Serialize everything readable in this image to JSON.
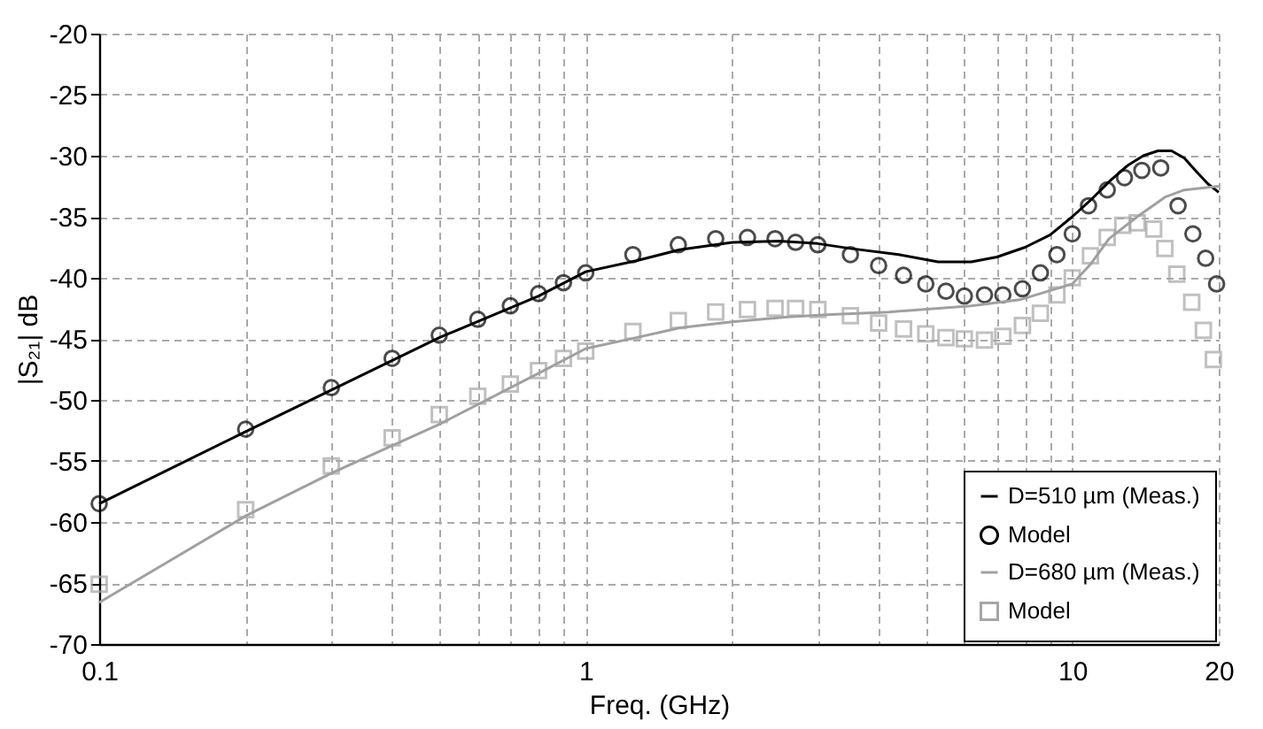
{
  "chart_data": {
    "type": "line",
    "xlabel": "Freq. (GHz)",
    "ylabel": "|S₂₁| dB",
    "log": "x",
    "grid": true,
    "legend": "bottom right",
    "xlim": [
      0.1,
      20
    ],
    "ylim": [
      -70,
      -20
    ],
    "xticks": [
      0.1,
      {
        "value": 0.2,
        "label": null
      },
      {
        "value": 0.3,
        "label": null
      },
      {
        "value": 0.4,
        "label": null
      },
      {
        "value": 0.5,
        "label": null
      },
      {
        "value": 0.6,
        "label": null
      },
      {
        "value": 0.7,
        "label": null
      },
      {
        "value": 0.8,
        "label": null
      },
      {
        "value": 0.9,
        "label": null
      },
      1,
      {
        "value": 2,
        "label": null
      },
      {
        "value": 3,
        "label": null
      },
      {
        "value": 4,
        "label": null
      },
      {
        "value": 5,
        "label": null
      },
      {
        "value": 6,
        "label": null
      },
      {
        "value": 7,
        "label": null
      },
      {
        "value": 8,
        "label": null
      },
      {
        "value": 9,
        "label": null
      },
      10,
      20
    ],
    "yticks": [
      -70,
      -65,
      -60,
      -55,
      -50,
      -45,
      -40,
      -35,
      -30,
      -25,
      -20
    ],
    "series": [
      {
        "name": "D=510 µm (Meas.)",
        "type": "line",
        "color": "#000000",
        "marker": "none",
        "x": [
          0.1,
          0.2,
          0.3,
          0.5,
          0.8,
          1,
          1.27,
          1.56,
          2,
          2.5,
          3,
          3.5,
          4.4,
          5.3,
          6.2,
          7,
          8,
          9,
          10,
          11,
          12,
          13,
          14,
          15,
          16,
          17,
          18,
          19,
          20
        ],
        "values": [
          -58.5,
          -52.6,
          -49.2,
          -44.9,
          -41.5,
          -39.5,
          -38.6,
          -37.7,
          -37.1,
          -37.0,
          -37.2,
          -37.6,
          -38.1,
          -38.7,
          -38.7,
          -38.3,
          -37.5,
          -36.5,
          -35.0,
          -33.5,
          -32.0,
          -30.8,
          -30.0,
          -29.6,
          -29.6,
          -30.2,
          -31.3,
          -32.3,
          -33.0
        ]
      },
      {
        "name": "Model",
        "type": "scatter",
        "color": "#000000",
        "marker": "circle",
        "x": [
          0.1,
          0.2,
          0.3,
          0.4,
          0.5,
          0.6,
          0.7,
          0.8,
          0.9,
          1.0,
          1.25,
          1.55,
          1.85,
          2.15,
          2.45,
          2.7,
          3,
          3.5,
          4,
          4.5,
          5,
          5.5,
          6,
          6.6,
          7.2,
          7.9,
          8.6,
          9.3,
          10,
          10.8,
          11.8,
          12.8,
          13.9,
          15.2,
          16.5,
          17.7,
          18.8,
          19.8
        ],
        "values": [
          -58.5,
          -52.4,
          -49.0,
          -46.6,
          -44.7,
          -43.4,
          -42.3,
          -41.3,
          -40.4,
          -39.6,
          -38.1,
          -37.3,
          -36.8,
          -36.7,
          -36.8,
          -37.1,
          -37.3,
          -38.1,
          -39.0,
          -39.8,
          -40.5,
          -41.1,
          -41.5,
          -41.4,
          -41.4,
          -40.9,
          -39.6,
          -38.1,
          -36.4,
          -34.1,
          -32.8,
          -31.8,
          -31.2,
          -31.0,
          -34.1,
          -36.4,
          -38.4,
          -40.5
        ]
      },
      {
        "name": "D=680 µm (Meas.)",
        "type": "line",
        "color": "#a0a0a0",
        "marker": "none",
        "x": [
          0.1,
          0.2,
          0.3,
          0.5,
          0.82,
          1,
          1.27,
          1.56,
          2,
          2.6,
          3.2,
          4.2,
          6.2,
          7.8,
          10,
          10.9,
          11.9,
          13.6,
          15.5,
          17,
          20
        ],
        "values": [
          -66.6,
          -59.5,
          -56.0,
          -52.0,
          -47.6,
          -45.8,
          -44.9,
          -44.1,
          -43.6,
          -43.2,
          -43.0,
          -42.8,
          -42.3,
          -41.8,
          -40.5,
          -38.9,
          -36.8,
          -35.0,
          -33.4,
          -32.8,
          -32.5
        ]
      },
      {
        "name": "Model",
        "type": "scatter",
        "color": "#a6a6a6",
        "marker": "square",
        "x": [
          0.1,
          0.2,
          0.3,
          0.4,
          0.5,
          0.6,
          0.7,
          0.8,
          0.9,
          1.0,
          1.25,
          1.55,
          1.85,
          2.15,
          2.45,
          2.7,
          3,
          3.5,
          4,
          4.5,
          5,
          5.5,
          6,
          6.6,
          7.2,
          7.9,
          8.6,
          9.3,
          10,
          10.9,
          11.8,
          12.7,
          13.6,
          14.7,
          15.5,
          16.4,
          17.6,
          18.6,
          19.5
        ],
        "values": [
          -65.1,
          -59.0,
          -55.4,
          -53.1,
          -51.2,
          -49.7,
          -48.7,
          -47.6,
          -46.6,
          -46.0,
          -44.4,
          -43.5,
          -42.8,
          -42.6,
          -42.5,
          -42.5,
          -42.6,
          -43.1,
          -43.7,
          -44.2,
          -44.6,
          -44.9,
          -45.0,
          -45.1,
          -44.8,
          -43.9,
          -42.9,
          -41.4,
          -40.0,
          -38.2,
          -36.7,
          -35.7,
          -35.5,
          -36.0,
          -37.6,
          -39.7,
          -42.0,
          -44.3,
          -46.7
        ]
      }
    ]
  }
}
